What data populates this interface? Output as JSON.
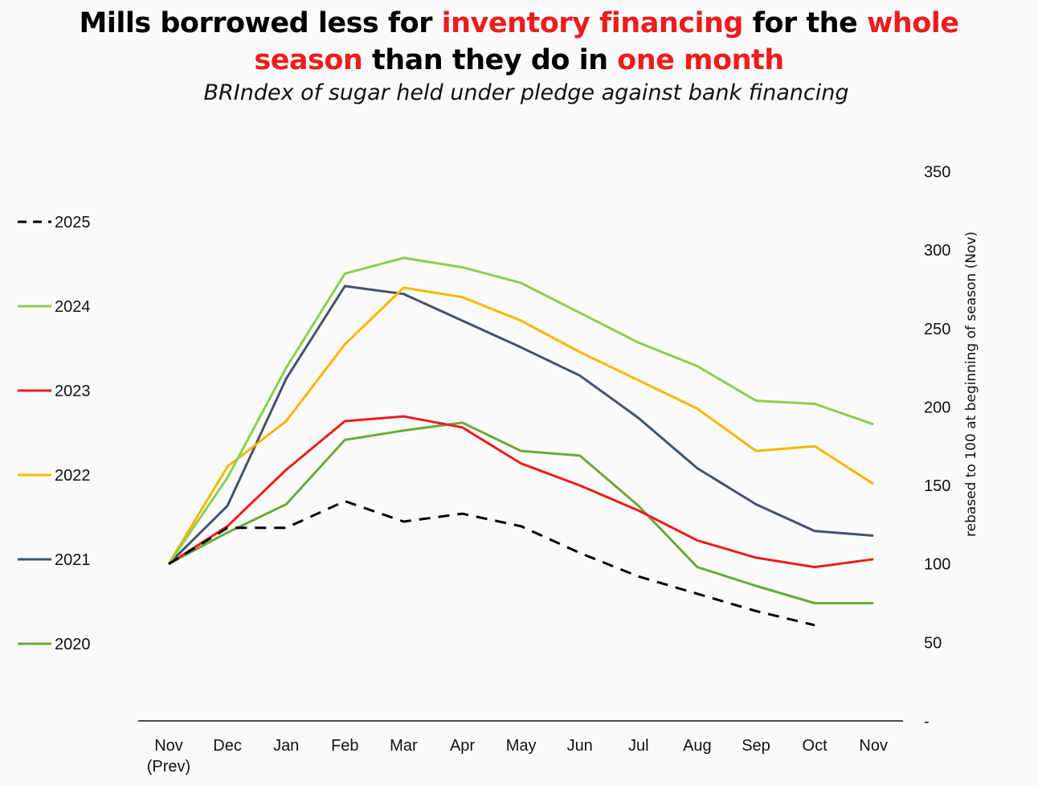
{
  "title": {
    "part1": "Mills borrowed less for ",
    "part2": "inventory financing",
    "part3": " for the ",
    "part4": "whole",
    "part5": "season",
    "part6": " than they do in ",
    "part7": "one month"
  },
  "subtitle": "BRIndex of sugar held under pledge against bank financing",
  "colors": {
    "title_highlight": "#ee1c1c",
    "2025": "#000000",
    "2024": "#8ccf4f",
    "2023": "#ee1c1c",
    "2022": "#f5b700",
    "2021": "#44546a",
    "2020": "#6aaa3a"
  },
  "chart_data": {
    "type": "line",
    "categories": [
      "Nov\n(Prev)",
      "Dec",
      "Jan",
      "Feb",
      "Mar",
      "Apr",
      "May",
      "Jun",
      "Jul",
      "Aug",
      "Sep",
      "Oct",
      "Nov"
    ],
    "category_lines": [
      [
        "Nov",
        "(Prev)"
      ],
      [
        "Dec"
      ],
      [
        "Jan"
      ],
      [
        "Feb"
      ],
      [
        "Mar"
      ],
      [
        "Apr"
      ],
      [
        "May"
      ],
      [
        "Jun"
      ],
      [
        "Jul"
      ],
      [
        "Aug"
      ],
      [
        "Sep"
      ],
      [
        "Oct"
      ],
      [
        "Nov"
      ]
    ],
    "ylabel": "rebased to 100 at beginning of season (Nov)",
    "ylim": [
      0,
      350
    ],
    "y_axis_side": "right",
    "y_ticks": [
      {
        "value": 0,
        "label": "-"
      },
      {
        "value": 50,
        "label": "50"
      },
      {
        "value": 100,
        "label": "100"
      },
      {
        "value": 150,
        "label": "150"
      },
      {
        "value": 200,
        "label": "200"
      },
      {
        "value": 250,
        "label": "250"
      },
      {
        "value": 300,
        "label": "300"
      },
      {
        "value": 350,
        "label": "350"
      }
    ],
    "legend_position": "left",
    "series": [
      {
        "name": "2025",
        "dashed": true,
        "values": [
          100,
          123,
          123,
          140,
          127,
          132,
          124,
          107,
          92,
          81,
          70,
          61,
          null
        ]
      },
      {
        "name": "2024",
        "dashed": false,
        "values": [
          100,
          155,
          225,
          285,
          295,
          289,
          279,
          260,
          241,
          226,
          204,
          202,
          189
        ]
      },
      {
        "name": "2023",
        "dashed": false,
        "values": [
          100,
          124,
          160,
          191,
          194,
          187,
          164,
          150,
          134,
          115,
          104,
          98,
          103
        ]
      },
      {
        "name": "2022",
        "dashed": false,
        "values": [
          100,
          162,
          191,
          240,
          276,
          270,
          255,
          235,
          217,
          199,
          172,
          175,
          151
        ]
      },
      {
        "name": "2021",
        "dashed": false,
        "values": [
          100,
          137,
          218,
          277,
          272,
          255,
          238,
          220,
          193,
          161,
          138,
          121,
          118
        ]
      },
      {
        "name": "2020",
        "dashed": false,
        "values": [
          100,
          120,
          138,
          179,
          185,
          190,
          172,
          169,
          137,
          98,
          86,
          75,
          75
        ]
      }
    ]
  }
}
